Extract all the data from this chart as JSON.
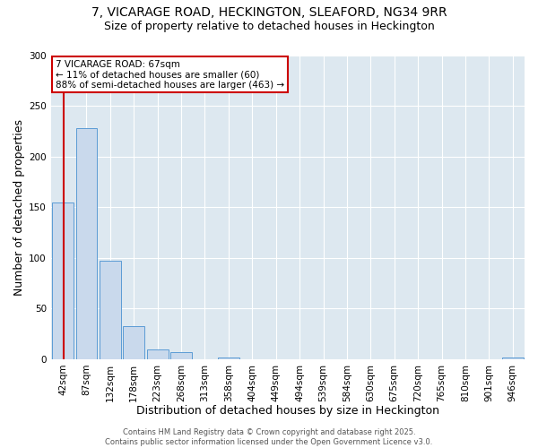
{
  "title": "7, VICARAGE ROAD, HECKINGTON, SLEAFORD, NG34 9RR",
  "subtitle": "Size of property relative to detached houses in Heckington",
  "xlabel": "Distribution of detached houses by size in Heckington",
  "ylabel": "Number of detached properties",
  "bin_labels": [
    "42sqm",
    "87sqm",
    "132sqm",
    "178sqm",
    "223sqm",
    "268sqm",
    "313sqm",
    "358sqm",
    "404sqm",
    "449sqm",
    "494sqm",
    "539sqm",
    "584sqm",
    "630sqm",
    "675sqm",
    "720sqm",
    "765sqm",
    "810sqm",
    "901sqm",
    "946sqm"
  ],
  "values": [
    155,
    228,
    97,
    33,
    10,
    7,
    0,
    2,
    0,
    0,
    0,
    0,
    0,
    0,
    0,
    0,
    0,
    0,
    0,
    2
  ],
  "bar_color": "#c9d9ec",
  "bar_edgecolor": "#5b9bd5",
  "vline_color": "#cc0000",
  "vline_x_idx": 0.56,
  "ylim": [
    0,
    300
  ],
  "yticks": [
    0,
    50,
    100,
    150,
    200,
    250,
    300
  ],
  "annotation_text": "7 VICARAGE ROAD: 67sqm\n← 11% of detached houses are smaller (60)\n88% of semi-detached houses are larger (463) →",
  "annotation_box_color": "#cc0000",
  "footer_line1": "Contains HM Land Registry data © Crown copyright and database right 2025.",
  "footer_line2": "Contains public sector information licensed under the Open Government Licence v3.0.",
  "bg_color": "#dde8f0",
  "title_fontsize": 10,
  "subtitle_fontsize": 9,
  "axis_label_fontsize": 9,
  "tick_fontsize": 7.5,
  "annot_fontsize": 7.5,
  "footer_fontsize": 6
}
